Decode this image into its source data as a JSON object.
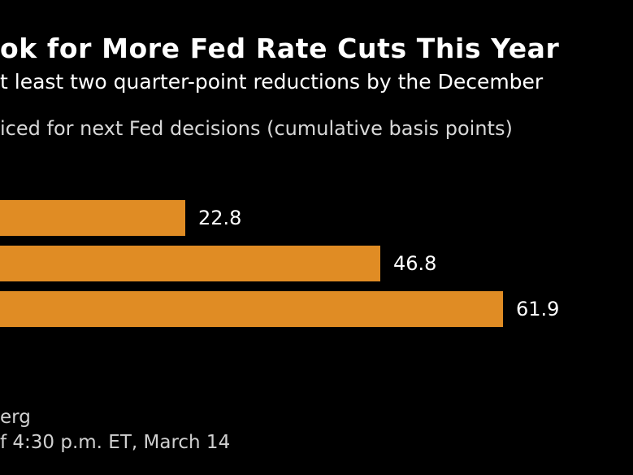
{
  "header": {
    "title": "ok for More Fed Rate Cuts This Year",
    "subtitle": "t least two quarter-point reductions by the December",
    "axis_description": "iced for next Fed decisions (cumulative basis points)"
  },
  "footer": {
    "source": "erg",
    "note": "f 4:30 p.m. ET, March 14"
  },
  "colors": {
    "background": "#000000",
    "bar": "#e08c24",
    "text": "#ffffff"
  },
  "chart_data": {
    "type": "bar",
    "orientation": "horizontal",
    "categories": [
      "",
      "",
      ""
    ],
    "values": [
      22.8,
      46.8,
      61.9
    ],
    "value_labels": [
      "22.8",
      "46.8",
      "61.9"
    ],
    "title": "ok for More Fed Rate Cuts This Year",
    "subtitle": "t least two quarter-point reductions by the December",
    "ylabel": "iced for next Fed decisions (cumulative basis points)",
    "xlim": [
      -3.0,
      75.0
    ],
    "grid": false,
    "legend": "none"
  }
}
